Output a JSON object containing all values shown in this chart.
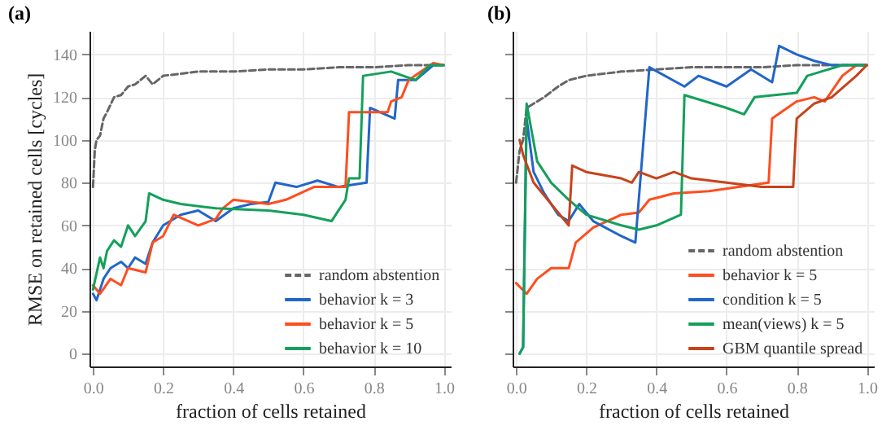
{
  "chart_data": [
    {
      "type": "line",
      "title": "(a)",
      "xlabel": "fraction of cells retained",
      "ylabel": "RMSE on retained cells [cycles]",
      "xlim": [
        -0.01,
        1.02
      ],
      "ylim": [
        -6,
        151
      ],
      "xticks": [
        {
          "value": 0,
          "label": "0.0"
        },
        {
          "value": 0.2,
          "label": "0.2"
        },
        {
          "value": 0.4,
          "label": "0.4"
        },
        {
          "value": 0.6,
          "label": "0.6"
        },
        {
          "value": 0.8,
          "label": "0.8"
        },
        {
          "value": 1,
          "label": "1.0"
        }
      ],
      "yticks": [
        0,
        20,
        40,
        60,
        80,
        100,
        120,
        140
      ],
      "grid": true,
      "legend": "bottom right",
      "marker": "none",
      "series": [
        {
          "name": "random abstention",
          "color": "#666666",
          "line_style": "dashed",
          "x": [
            0,
            0.005,
            0.01,
            0.02,
            0.03,
            0.04,
            0.06,
            0.08,
            0.1,
            0.12,
            0.15,
            0.17,
            0.2,
            0.25,
            0.3,
            0.4,
            0.5,
            0.6,
            0.7,
            0.8,
            0.9,
            1.0
          ],
          "values": [
            78,
            95,
            100,
            102,
            110,
            113,
            120,
            121,
            125,
            126,
            130,
            126,
            130,
            131,
            132,
            132,
            133,
            133,
            134,
            134,
            135,
            135
          ]
        },
        {
          "name": "behavior k = 3",
          "color": "#2166c9",
          "line_style": "solid",
          "x": [
            0,
            0.01,
            0.03,
            0.05,
            0.08,
            0.1,
            0.12,
            0.15,
            0.17,
            0.2,
            0.25,
            0.3,
            0.35,
            0.4,
            0.45,
            0.5,
            0.52,
            0.58,
            0.64,
            0.7,
            0.78,
            0.79,
            0.86,
            0.87,
            0.92,
            0.97,
            1.0
          ],
          "values": [
            28,
            25,
            35,
            40,
            43,
            40,
            45,
            42,
            52,
            60,
            65,
            67,
            62,
            68,
            70,
            71,
            80,
            78,
            81,
            78,
            80,
            115,
            110,
            128,
            128,
            135,
            135
          ]
        },
        {
          "name": "behavior k = 5",
          "color": "#ff4d1f",
          "line_style": "solid",
          "x": [
            0,
            0.02,
            0.05,
            0.08,
            0.1,
            0.15,
            0.17,
            0.2,
            0.23,
            0.3,
            0.35,
            0.37,
            0.4,
            0.5,
            0.55,
            0.63,
            0.72,
            0.73,
            0.84,
            0.85,
            0.88,
            0.9,
            0.97,
            1.0
          ],
          "values": [
            32,
            28,
            35,
            32,
            40,
            38,
            52,
            55,
            65,
            60,
            63,
            68,
            72,
            70,
            72,
            78,
            78,
            113,
            113,
            118,
            120,
            128,
            136,
            135
          ]
        },
        {
          "name": "behavior k = 10",
          "color": "#14a05a",
          "line_style": "solid",
          "x": [
            0,
            0.02,
            0.03,
            0.04,
            0.06,
            0.08,
            0.1,
            0.12,
            0.15,
            0.16,
            0.2,
            0.25,
            0.35,
            0.5,
            0.6,
            0.68,
            0.7,
            0.72,
            0.73,
            0.76,
            0.77,
            0.85,
            0.92,
            0.96,
            1.0
          ],
          "values": [
            30,
            45,
            40,
            48,
            53,
            50,
            60,
            55,
            62,
            75,
            72,
            70,
            68,
            67,
            65,
            62,
            67,
            72,
            82,
            82,
            130,
            132,
            128,
            135,
            135
          ]
        }
      ]
    },
    {
      "type": "line",
      "title": "(b)",
      "xlabel": "fraction of cells retained",
      "xlim": [
        -0.01,
        1.02
      ],
      "ylim": [
        -6,
        151
      ],
      "xticks": [
        {
          "value": 0,
          "label": "0.0"
        },
        {
          "value": 0.2,
          "label": "0.2"
        },
        {
          "value": 0.4,
          "label": "0.4"
        },
        {
          "value": 0.6,
          "label": "0.6"
        },
        {
          "value": 0.8,
          "label": "0.8"
        },
        {
          "value": 1,
          "label": "1.0"
        }
      ],
      "yticks": [
        0,
        20,
        40,
        60,
        80,
        100,
        120,
        140
      ],
      "tick_labels": "x",
      "grid": true,
      "legend": "bottom right",
      "marker": "none",
      "series": [
        {
          "name": "random abstention",
          "color": "#666666",
          "line_style": "dashed",
          "x": [
            0,
            0.01,
            0.02,
            0.03,
            0.05,
            0.08,
            0.12,
            0.15,
            0.2,
            0.25,
            0.3,
            0.4,
            0.5,
            0.6,
            0.7,
            0.8,
            0.9,
            1.0
          ],
          "values": [
            80,
            95,
            100,
            115,
            117,
            120,
            125,
            128,
            130,
            131,
            132,
            133,
            134,
            134,
            134,
            135,
            135,
            135
          ]
        },
        {
          "name": "behavior k = 5",
          "color": "#ff4d1f",
          "line_style": "solid",
          "x": [
            0,
            0.03,
            0.06,
            0.1,
            0.15,
            0.17,
            0.22,
            0.3,
            0.35,
            0.38,
            0.45,
            0.55,
            0.72,
            0.73,
            0.8,
            0.85,
            0.88,
            0.93,
            0.97,
            1.0
          ],
          "values": [
            33,
            28,
            35,
            40,
            40,
            52,
            59,
            65,
            66,
            72,
            75,
            76,
            80,
            110,
            118,
            120,
            118,
            130,
            135,
            135
          ]
        },
        {
          "name": "condition k = 5",
          "color": "#2166c9",
          "line_style": "solid",
          "x": [
            0.01,
            0.02,
            0.03,
            0.05,
            0.08,
            0.12,
            0.15,
            0.18,
            0.22,
            0.3,
            0.34,
            0.38,
            0.48,
            0.52,
            0.6,
            0.67,
            0.73,
            0.75,
            0.8,
            0.85,
            0.9,
            1.0
          ],
          "values": [
            0,
            3,
            110,
            85,
            75,
            65,
            62,
            70,
            62,
            55,
            52,
            134,
            125,
            130,
            125,
            133,
            127,
            144,
            140,
            137,
            135,
            135
          ]
        },
        {
          "name": "mean(views) k = 5",
          "color": "#14a05a",
          "line_style": "solid",
          "x": [
            0.01,
            0.02,
            0.03,
            0.06,
            0.1,
            0.15,
            0.2,
            0.3,
            0.35,
            0.4,
            0.47,
            0.48,
            0.6,
            0.65,
            0.68,
            0.8,
            0.83,
            0.93,
            1.0
          ],
          "values": [
            0,
            3,
            117,
            90,
            80,
            72,
            65,
            60,
            58,
            60,
            65,
            121,
            115,
            112,
            120,
            122,
            130,
            135,
            135
          ]
        },
        {
          "name": "GBM quantile spread",
          "color": "#c7431a",
          "line_style": "solid",
          "x": [
            0.01,
            0.02,
            0.05,
            0.1,
            0.15,
            0.16,
            0.2,
            0.3,
            0.33,
            0.35,
            0.4,
            0.45,
            0.5,
            0.6,
            0.7,
            0.79,
            0.8,
            0.85,
            0.9,
            0.97,
            1.0
          ],
          "values": [
            100,
            93,
            80,
            70,
            60,
            88,
            85,
            82,
            80,
            85,
            82,
            85,
            82,
            80,
            78,
            78,
            110,
            117,
            120,
            130,
            135
          ]
        }
      ]
    }
  ]
}
